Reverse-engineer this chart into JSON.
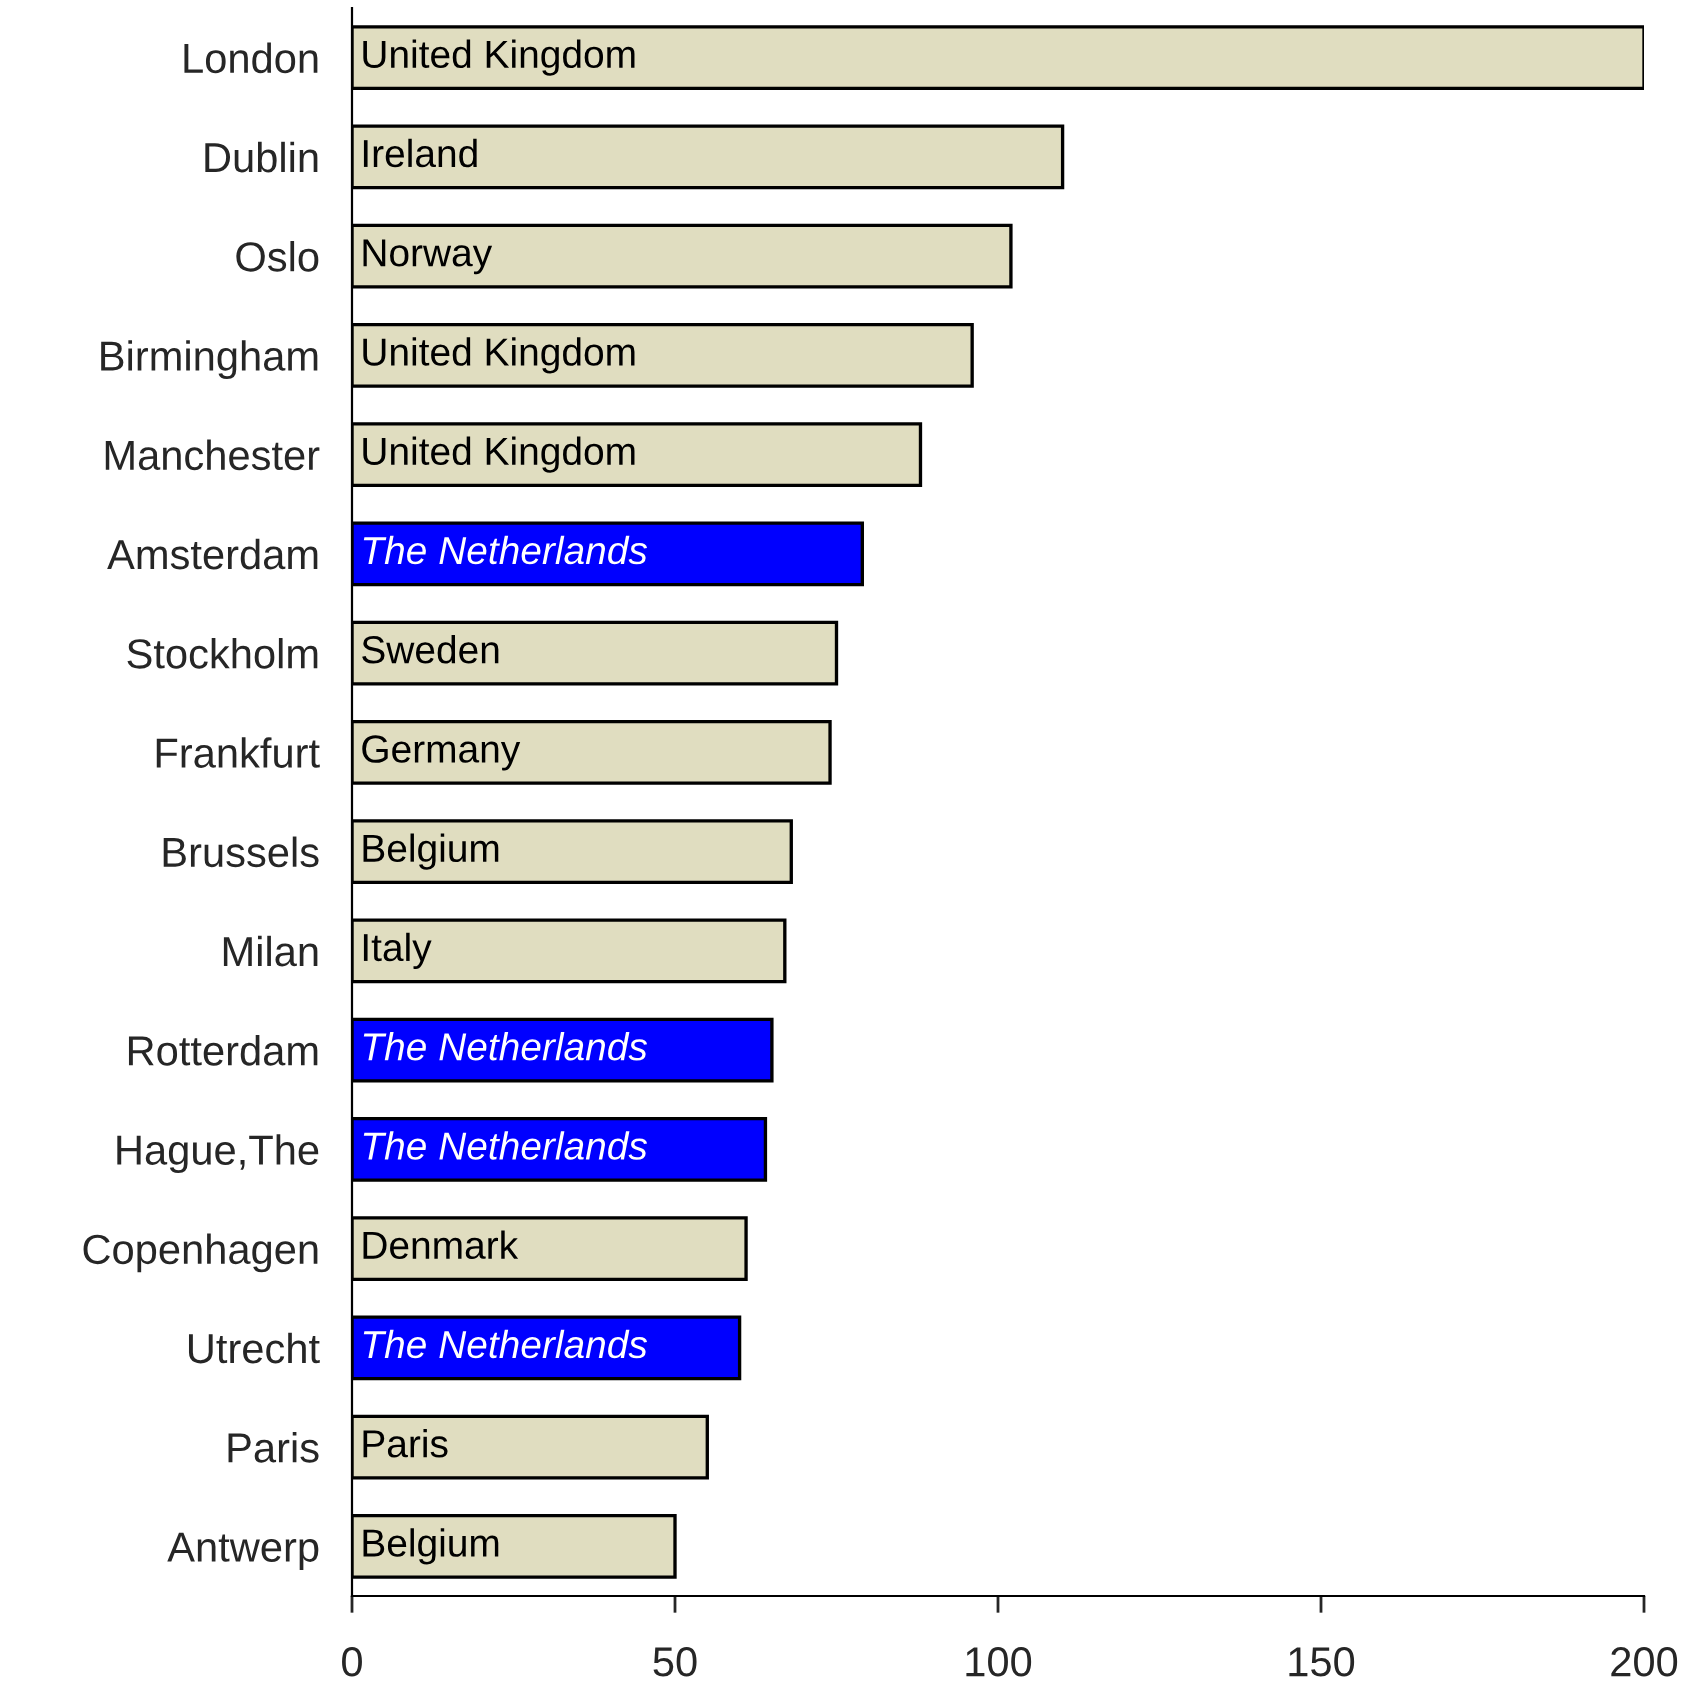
{
  "chart_data": {
    "type": "bar",
    "orientation": "horizontal",
    "categories": [
      "London",
      "Dublin",
      "Oslo",
      "Birmingham",
      "Manchester",
      "Amsterdam",
      "Stockholm",
      "Frankfurt",
      "Brussels",
      "Milan",
      "Rotterdam",
      "Hague,The",
      "Copenhagen",
      "Utrecht",
      "Paris",
      "Antwerp"
    ],
    "values": [
      200,
      110,
      102,
      96,
      88,
      79,
      75,
      74,
      68,
      67,
      65,
      64,
      61,
      60,
      55,
      50
    ],
    "value_labels": [
      "United Kingdom",
      "Ireland",
      "Norway",
      "United Kingdom",
      "United Kingdom",
      "The Netherlands",
      "Sweden",
      "Germany",
      "Belgium",
      "Italy",
      "The Netherlands",
      "The Netherlands",
      "Denmark",
      "The Netherlands",
      "Paris",
      "Belgium"
    ],
    "colors": [
      "#e0ddc0",
      "#e0ddc0",
      "#e0ddc0",
      "#e0ddc0",
      "#e0ddc0",
      "#0000ff",
      "#e0ddc0",
      "#e0ddc0",
      "#e0ddc0",
      "#e0ddc0",
      "#0000ff",
      "#0000ff",
      "#e0ddc0",
      "#0000ff",
      "#e0ddc0",
      "#e0ddc0"
    ],
    "xlim": [
      0,
      200
    ],
    "xticks": [
      0,
      50,
      100,
      150,
      200
    ],
    "grid": false,
    "legend": false
  }
}
